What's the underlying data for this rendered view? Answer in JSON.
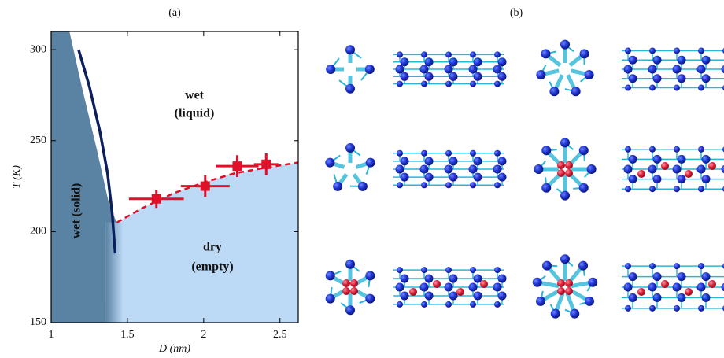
{
  "chart_data": {
    "type": "phase-diagram",
    "panel_label": "(a)",
    "xlabel": "D (nm)",
    "ylabel": "T (K)",
    "xlim": [
      1,
      2.62
    ],
    "ylim": [
      150,
      310
    ],
    "xticks": [
      1,
      1.5,
      2,
      2.5
    ],
    "yticks": [
      150,
      200,
      250,
      300
    ],
    "points": {
      "color": "#e0102a",
      "x": [
        1.69,
        2.01,
        2.22,
        2.41
      ],
      "values": [
        218,
        225,
        236,
        237
      ],
      "xerr": [
        0.18,
        0.16,
        0.14,
        0.08
      ],
      "yerr": [
        5,
        6,
        6,
        6
      ]
    },
    "fit": {
      "color": "#e0102a",
      "x": [
        1.43,
        1.6,
        1.8,
        2.0,
        2.2,
        2.4,
        2.62
      ],
      "values": [
        205,
        213,
        221,
        227,
        232,
        235,
        238
      ]
    },
    "melting_line": {
      "color": "#0a1f5c",
      "x": [
        1.18,
        1.25,
        1.32,
        1.37,
        1.4,
        1.42
      ],
      "values": [
        300,
        280,
        255,
        232,
        210,
        188
      ]
    },
    "solid_region": {
      "color": "#5a83a3",
      "x": [
        1.12,
        1.2,
        1.3,
        1.38,
        1.43
      ],
      "values": [
        310,
        280,
        245,
        215,
        205
      ]
    },
    "empty_region_color": "#bcd9f5",
    "annotations": [
      "wet",
      "(liquid)",
      "wet (solid)",
      "dry",
      "(empty)"
    ]
  },
  "panel_b": {
    "label": "(b)"
  }
}
